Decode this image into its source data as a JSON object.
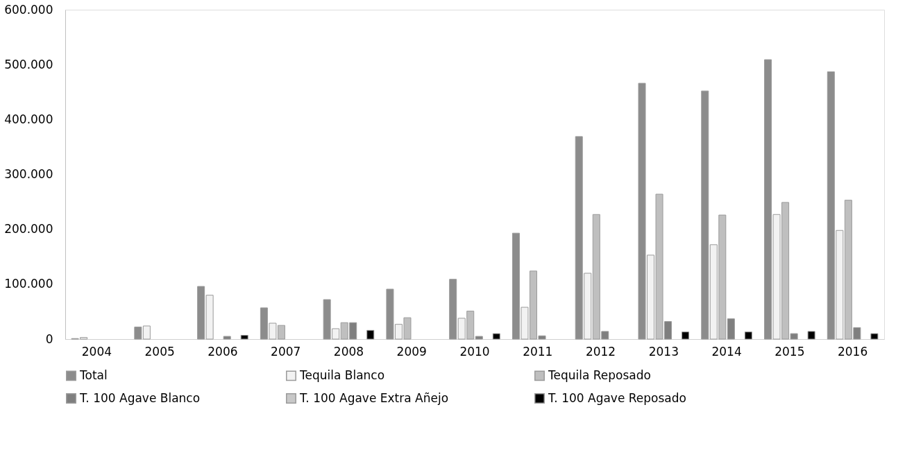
{
  "chart_data": {
    "type": "bar",
    "categories": [
      "2004",
      "2005",
      "2006",
      "2007",
      "2008",
      "2009",
      "2010",
      "2011",
      "2012",
      "2013",
      "2014",
      "2015",
      "2016"
    ],
    "series": [
      {
        "name": "Total",
        "color": "#8c8c8c",
        "values": [
          1000,
          22000,
          96000,
          57000,
          72000,
          91000,
          109000,
          193000,
          369000,
          466000,
          452000,
          509000,
          487000
        ]
      },
      {
        "name": "Tequila Blanco",
        "color": "#f2f2f2",
        "values": [
          3000,
          24000,
          80000,
          29000,
          19000,
          27000,
          38000,
          58000,
          120000,
          153000,
          172000,
          227000,
          198000
        ]
      },
      {
        "name": "Tequila Reposado",
        "color": "#bfbfbf",
        "values": [
          null,
          null,
          null,
          25000,
          30000,
          39000,
          51000,
          124000,
          227000,
          264000,
          226000,
          249000,
          253000
        ]
      },
      {
        "name": "T. 100 Agave Blanco",
        "color": "#7f7f7f",
        "values": [
          null,
          null,
          5000,
          null,
          30000,
          null,
          5000,
          6000,
          14000,
          32000,
          37000,
          10000,
          21000
        ]
      },
      {
        "name": "T. 100 Agave Extra Añejo",
        "color": "#c8c8c8",
        "values": [
          null,
          null,
          null,
          null,
          null,
          null,
          null,
          null,
          null,
          null,
          null,
          null,
          null
        ]
      },
      {
        "name": "T. 100 Agave Reposado",
        "color": "#000000",
        "values": [
          null,
          null,
          7000,
          null,
          16000,
          null,
          10000,
          null,
          null,
          13000,
          13000,
          14000,
          10000
        ]
      }
    ],
    "ylim": [
      0,
      600000
    ],
    "yticks": [
      0,
      {
        "value": 100000,
        "label": "100.000"
      },
      {
        "value": 200000,
        "label": "200.000"
      },
      {
        "value": 300000,
        "label": "300.000"
      },
      {
        "value": 400000,
        "label": "400.000"
      },
      {
        "value": 500000,
        "label": "500.000"
      },
      {
        "value": 600000,
        "label": "600.000"
      }
    ],
    "grid": false,
    "legend": "bottom"
  }
}
